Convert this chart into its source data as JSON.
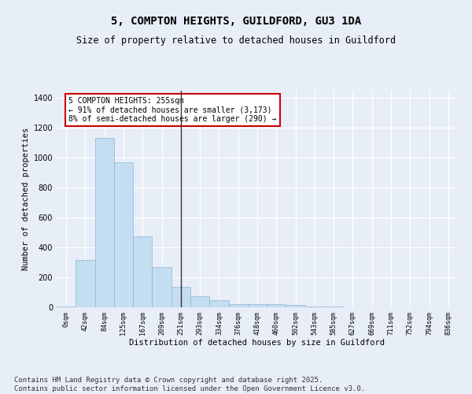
{
  "title": "5, COMPTON HEIGHTS, GUILDFORD, GU3 1DA",
  "subtitle": "Size of property relative to detached houses in Guildford",
  "xlabel": "Distribution of detached houses by size in Guildford",
  "ylabel": "Number of detached properties",
  "bar_labels": [
    "0sqm",
    "42sqm",
    "84sqm",
    "125sqm",
    "167sqm",
    "209sqm",
    "251sqm",
    "293sqm",
    "334sqm",
    "376sqm",
    "418sqm",
    "460sqm",
    "502sqm",
    "543sqm",
    "585sqm",
    "627sqm",
    "669sqm",
    "711sqm",
    "752sqm",
    "794sqm",
    "836sqm"
  ],
  "bar_values": [
    5,
    315,
    1135,
    970,
    475,
    270,
    135,
    75,
    48,
    20,
    22,
    22,
    18,
    5,
    3,
    1,
    0,
    0,
    0,
    0,
    0
  ],
  "bar_color": "#c5ddf0",
  "bar_edge_color": "#8ab4d4",
  "vline_x": 6,
  "vline_color": "#333333",
  "annotation_text": "5 COMPTON HEIGHTS: 255sqm\n← 91% of detached houses are smaller (3,173)\n8% of semi-detached houses are larger (290) →",
  "annotation_box_color": "#ffffff",
  "annotation_box_edge": "#cc0000",
  "ylim": [
    0,
    1450
  ],
  "yticks": [
    0,
    200,
    400,
    600,
    800,
    1000,
    1200,
    1400
  ],
  "background_color": "#e8eef8",
  "grid_color": "#ffffff",
  "title_fontsize": 10,
  "subtitle_fontsize": 8.5,
  "footer_text": "Contains HM Land Registry data © Crown copyright and database right 2025.\nContains public sector information licensed under the Open Government Licence v3.0.",
  "footer_fontsize": 6.5
}
